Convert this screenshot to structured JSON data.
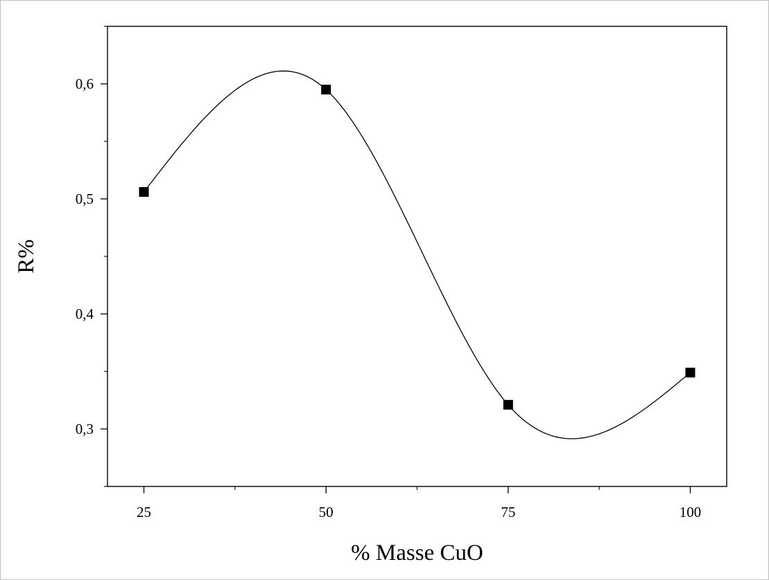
{
  "chart_data": {
    "type": "line",
    "title": "",
    "xlabel": "% Masse CuO",
    "ylabel": "R%",
    "xlim": [
      20,
      105
    ],
    "ylim": [
      0.25,
      0.65
    ],
    "xticks": [
      25,
      50,
      75,
      100
    ],
    "xtick_labels": [
      "25",
      "50",
      "75",
      "100"
    ],
    "xminor": [
      37.5,
      62.5,
      87.5
    ],
    "yticks": [
      0.3,
      0.4,
      0.5,
      0.6
    ],
    "ytick_labels": [
      "0,3",
      "0,4",
      "0,5",
      "0,6"
    ],
    "yminor": [
      0.25,
      0.35,
      0.45,
      0.55,
      0.65
    ],
    "grid": false,
    "legend": "none",
    "series": [
      {
        "marker": "square",
        "color": "#000000",
        "x": [
          25,
          50,
          75,
          100
        ],
        "y": [
          0.506,
          0.595,
          0.321,
          0.349
        ]
      }
    ],
    "fit_curve": {
      "style": "smooth spline",
      "color": "#000000"
    }
  }
}
